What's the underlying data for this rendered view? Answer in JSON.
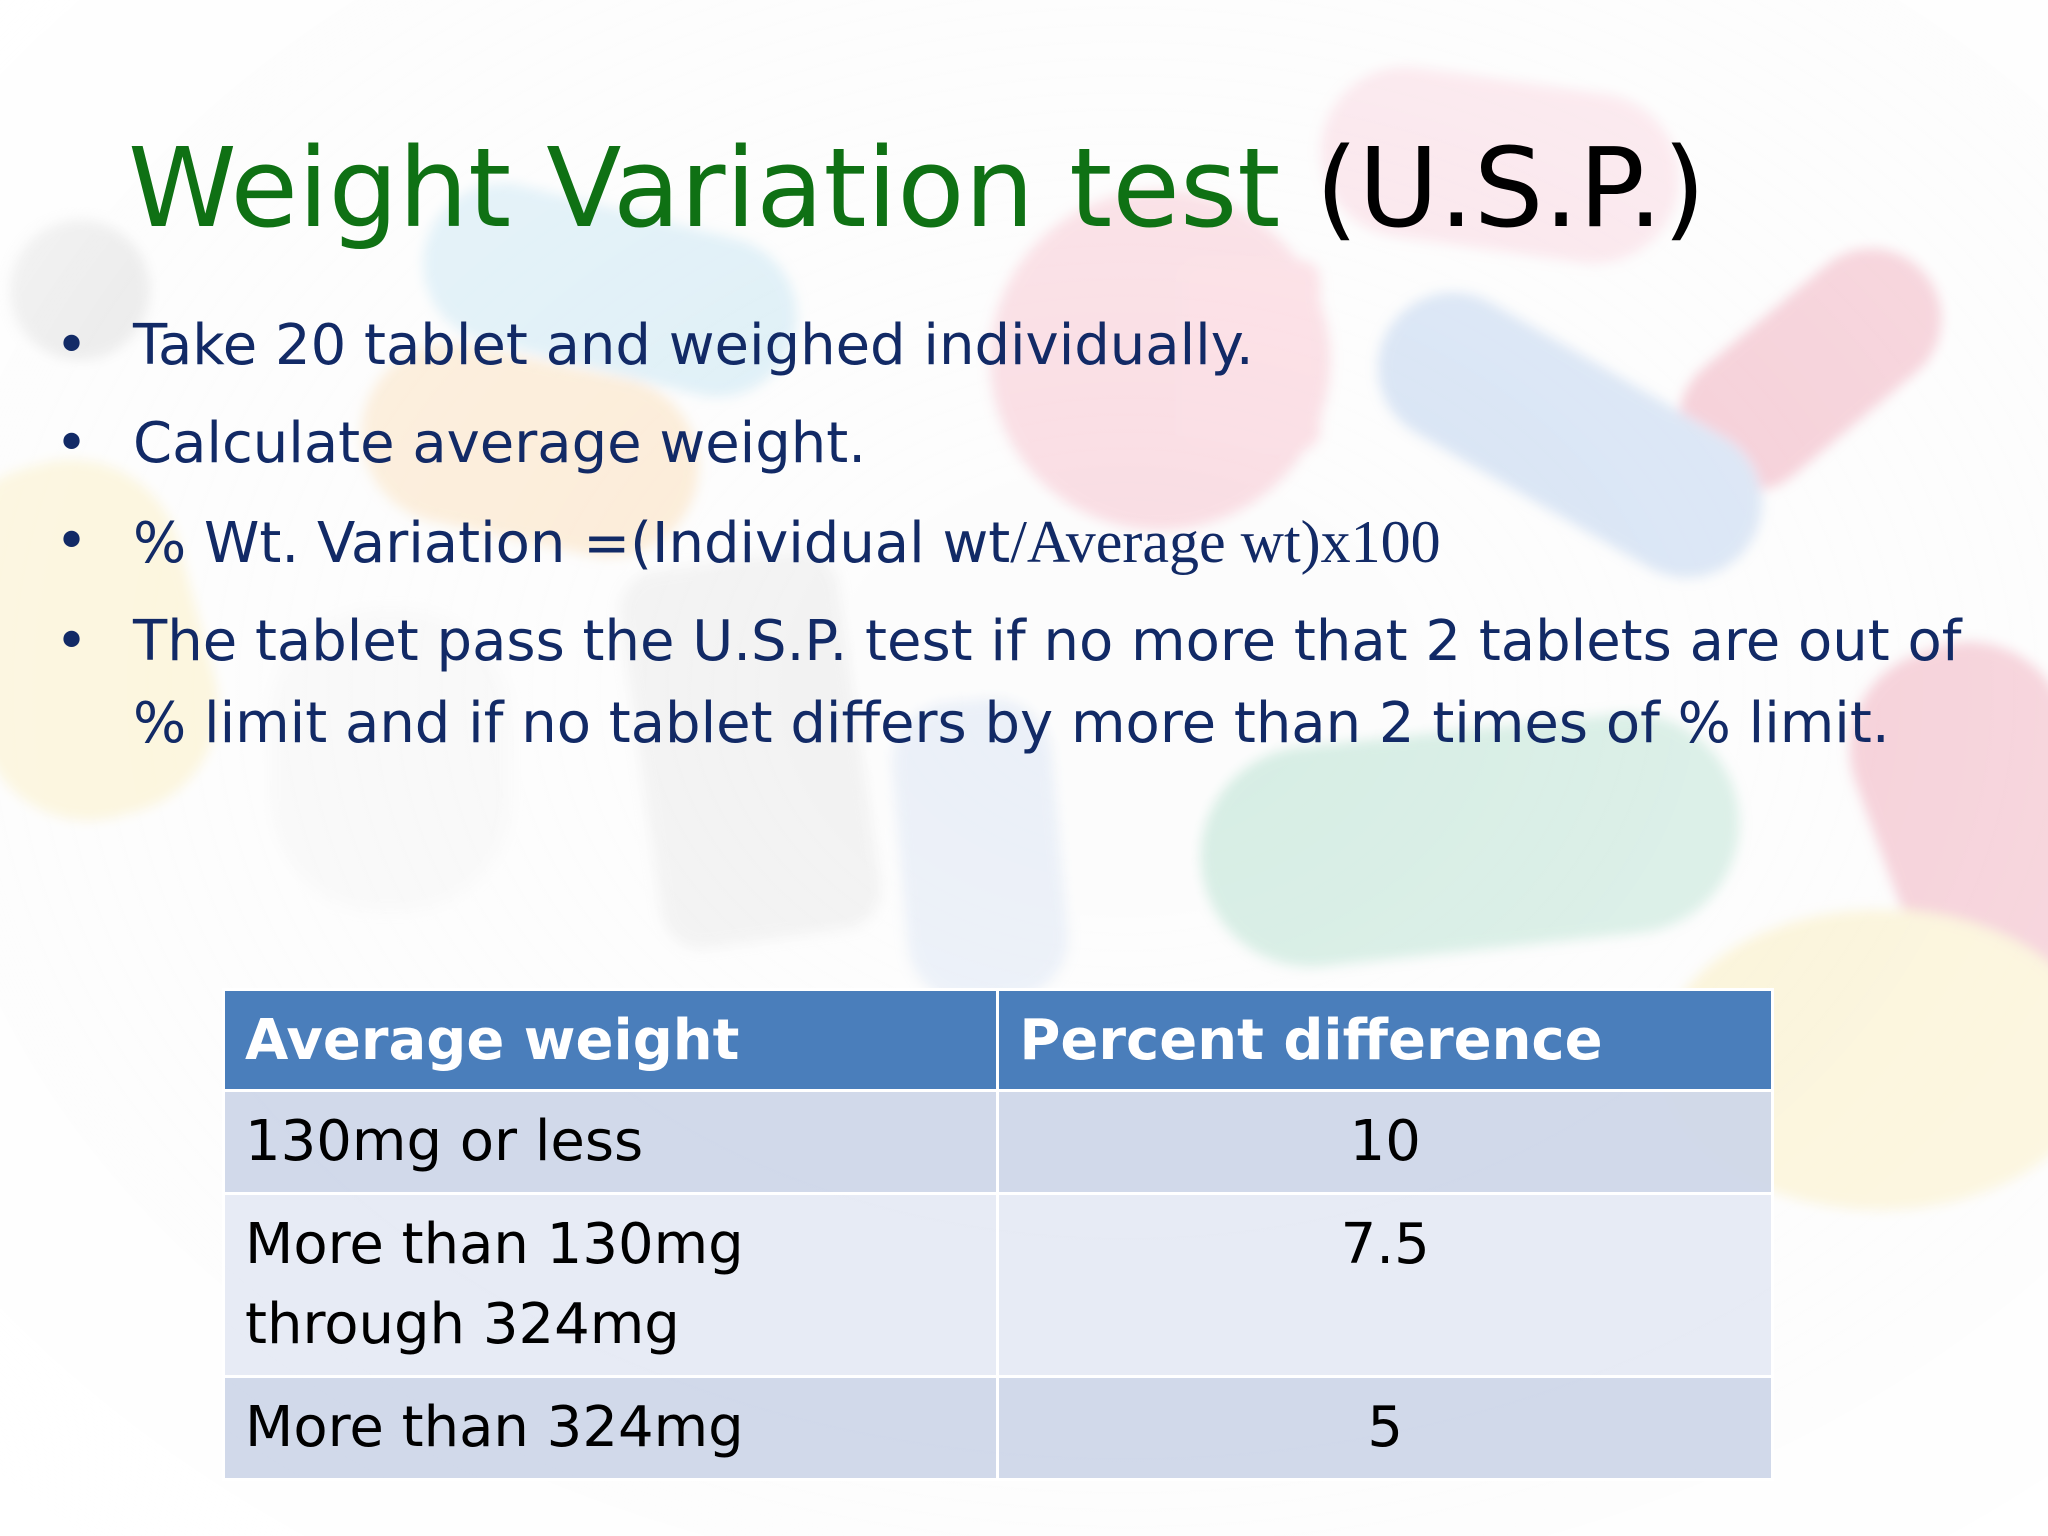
{
  "slide": {
    "title_main": "Weight Variation test",
    "title_suffix": "(U.S.P.)",
    "bullet_marker": "•",
    "bullets": [
      "Take 20 tablet and weighed individually.",
      "Calculate average weight.",
      {
        "part1": " % Wt. Variation =(Individual wt",
        "part2": "/Average wt)x100"
      },
      "The tablet pass the U.S.P. test if no more that 2 tablets are out of % limit and if no tablet differs by more than 2 times of % limit."
    ]
  },
  "table": {
    "headers": [
      "Average weight",
      "Percent difference"
    ],
    "rows": [
      [
        "130mg or less",
        "10"
      ],
      [
        "More than 130mg through 324mg",
        "7.5"
      ],
      [
        "More than 324mg",
        "5"
      ]
    ]
  },
  "background_image": {
    "icon": "pills-background-image",
    "pill_colors": [
      "#f5b6c8",
      "#9fd3ea",
      "#f7c98a",
      "#f3a1b3",
      "#8ed0b6",
      "#f6e08a",
      "#e46b86",
      "#8fb3e3"
    ]
  }
}
